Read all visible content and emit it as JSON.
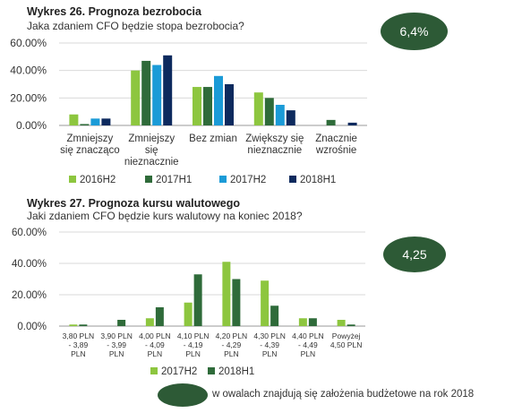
{
  "colors": {
    "2016H2": "#8dc63f",
    "2017H1": "#2f6b3a",
    "2017H2": "#1b9bd7",
    "2018H1": "#0d2a5e",
    "oval": "#2d5a36",
    "grid": "#d9d9d9",
    "axis": "#9a9a9a"
  },
  "chart1": {
    "title": "Wykres 26. Prognoza bezrobocia",
    "subtitle": "Jaka zdaniem CFO będzie stopa bezrobocia?",
    "oval_value": "6,4%"
  },
  "chart2": {
    "title": "Wykres 27. Prognoza kursu walutowego",
    "subtitle": "Jaki zdaniem CFO będzie kurs walutowy na koniec 2018?",
    "oval_value": "4,25"
  },
  "footnote": "w owalach znajdują się założenia budżetowe na rok 2018",
  "chart_data": [
    {
      "type": "bar",
      "title": "Wykres 26. Prognoza bezrobocia",
      "categories": [
        [
          "Zmniejszy",
          "się znacząco"
        ],
        [
          "Zmniejszy",
          "się",
          "nieznacznie"
        ],
        [
          "Bez zmian"
        ],
        [
          "Zwiększy się",
          "nieznacznie"
        ],
        [
          "Znacznie",
          "wzrośnie"
        ]
      ],
      "series": [
        {
          "name": "2016H2",
          "color": "#8dc63f",
          "values": [
            8,
            40,
            28,
            24,
            0
          ]
        },
        {
          "name": "2017H1",
          "color": "#2f6b3a",
          "values": [
            1,
            47,
            28,
            20,
            4
          ]
        },
        {
          "name": "2017H2",
          "color": "#1b9bd7",
          "values": [
            5,
            44,
            36,
            15,
            0
          ]
        },
        {
          "name": "2018H1",
          "color": "#0d2a5e",
          "values": [
            5,
            51,
            30,
            11,
            2
          ]
        }
      ],
      "yticks": [
        "0.00%",
        "20.00%",
        "40.00%",
        "60.00%"
      ],
      "ylim": [
        0,
        60
      ],
      "legend": "bottom"
    },
    {
      "type": "bar",
      "title": "Wykres 27. Prognoza kursu walutowego",
      "categories": [
        [
          "3,80 PLN",
          "- 3,89",
          "PLN"
        ],
        [
          "3,90 PLN",
          "- 3,99",
          "PLN"
        ],
        [
          "4,00 PLN",
          "- 4,09",
          "PLN"
        ],
        [
          "4,10 PLN",
          "- 4,19",
          "PLN"
        ],
        [
          "4,20 PLN",
          "- 4,29",
          "PLN"
        ],
        [
          "4,30 PLN",
          "- 4,39",
          "PLN"
        ],
        [
          "4,40 PLN",
          "- 4,49",
          "PLN"
        ],
        [
          "Powyżej",
          "4,50 PLN"
        ]
      ],
      "series": [
        {
          "name": "2017H2",
          "color": "#8dc63f",
          "values": [
            1,
            0,
            5,
            15,
            41,
            29,
            5,
            4
          ]
        },
        {
          "name": "2018H1",
          "color": "#2f6b3a",
          "values": [
            1,
            4,
            12,
            33,
            30,
            13,
            5,
            1
          ]
        }
      ],
      "yticks": [
        "0.00%",
        "20.00%",
        "40.00%",
        "60.00%"
      ],
      "ylim": [
        0,
        60
      ],
      "legend": "bottom"
    }
  ]
}
